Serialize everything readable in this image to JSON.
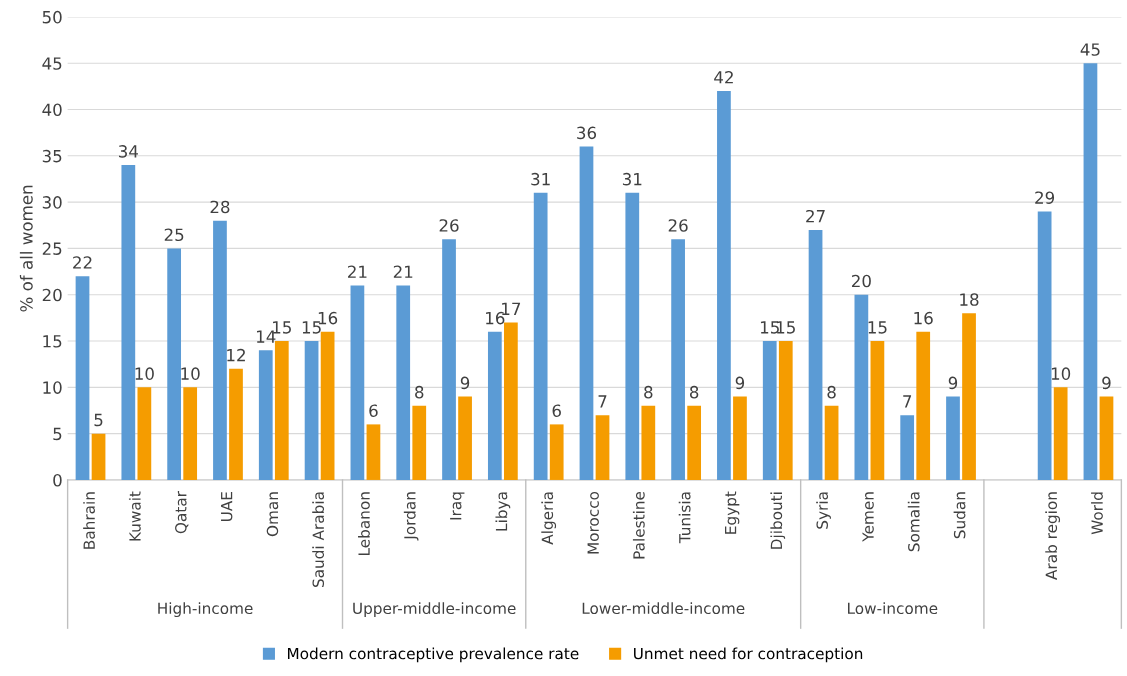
{
  "chart_data": {
    "type": "bar",
    "ylabel": "% of all women",
    "categories": [
      "Bahrain",
      "Kuwait",
      "Qatar",
      "UAE",
      "Oman",
      "Saudi Arabia",
      "Lebanon",
      "Jordan",
      "Iraq",
      "Libya",
      "Algeria",
      "Morocco",
      "Palestine",
      "Tunisia",
      "Egypt",
      "Djibouti",
      "Syria",
      "Yemen",
      "Somalia",
      "Sudan",
      null,
      "Arab region",
      "World"
    ],
    "series": [
      {
        "name": "Modern contraceptive prevalence rate",
        "color": "#5b9bd5",
        "values": [
          22,
          34,
          25,
          28,
          14,
          15,
          21,
          21,
          26,
          16,
          31,
          36,
          31,
          26,
          42,
          15,
          27,
          20,
          7,
          9,
          null,
          29,
          45
        ]
      },
      {
        "name": "Unmet need for contraception",
        "color": "#f59c00",
        "values": [
          5,
          10,
          10,
          12,
          15,
          16,
          6,
          8,
          9,
          17,
          6,
          7,
          8,
          8,
          9,
          15,
          8,
          15,
          16,
          18,
          null,
          10,
          9
        ]
      }
    ],
    "annotations": [
      "High-income",
      "Upper-middle-income",
      "Lower-middle-income",
      "Low-income"
    ],
    "ylim": [
      0,
      50
    ],
    "yticks": [
      0,
      5,
      10,
      15,
      20,
      25,
      30,
      35,
      40,
      45,
      50
    ],
    "grid": "y",
    "legend": "bottom",
    "data_labels": true
  }
}
